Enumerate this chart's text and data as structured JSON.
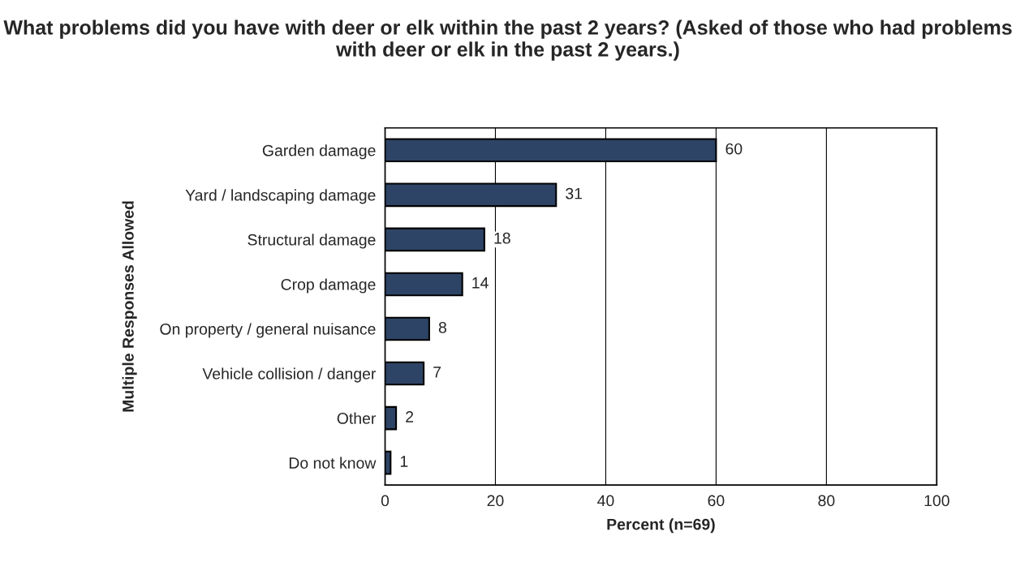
{
  "chart_data": {
    "type": "bar",
    "orientation": "horizontal",
    "title": "What problems did you have with deer or elk within the past 2 years? (Asked of those who had problems with deer or elk in the past 2 years.)",
    "xlabel": "Percent (n=69)",
    "ylabel": "Multiple Responses Allowed",
    "categories": [
      "Garden damage",
      "Yard / landscaping damage",
      "Structural damage",
      "Crop damage",
      "On property / general nuisance",
      "Vehicle collision / danger",
      "Other",
      "Do not know"
    ],
    "values": [
      60,
      31,
      18,
      14,
      8,
      7,
      2,
      1
    ],
    "color": "#2e4466",
    "xlim": [
      0,
      100
    ],
    "xticks": [
      0,
      20,
      40,
      60,
      80,
      100
    ],
    "grid": "x",
    "data_labels": true
  }
}
